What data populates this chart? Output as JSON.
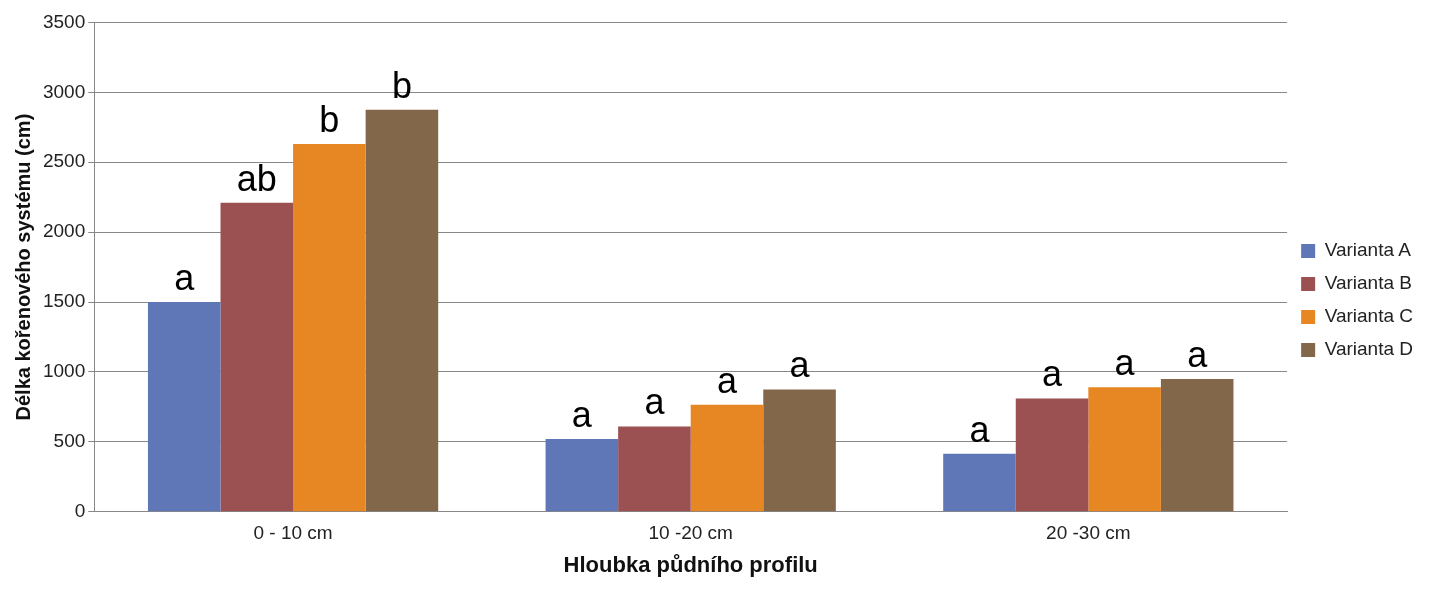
{
  "chart_data": {
    "type": "bar",
    "xlabel": "Hloubka půdního profilu",
    "ylabel": "Délka kořenového systému (cm)",
    "categories": [
      "0 - 10 cm",
      "10 -20 cm",
      "20 -30 cm"
    ],
    "series": [
      {
        "name": "Varianta A",
        "color": "#5f77b6",
        "values": [
          1500,
          520,
          415
        ]
      },
      {
        "name": "Varianta B",
        "color": "#9b5152",
        "values": [
          2210,
          610,
          810
        ]
      },
      {
        "name": "Varianta C",
        "color": "#e68724",
        "values": [
          2630,
          765,
          890
        ]
      },
      {
        "name": "Varianta D",
        "color": "#82674a",
        "values": [
          2875,
          875,
          950
        ]
      }
    ],
    "ylim": [
      0,
      3500
    ],
    "yticks": [
      0,
      500,
      1000,
      1500,
      2000,
      2500,
      3000,
      3500
    ],
    "grid": "y",
    "legend": "right",
    "annotations": [
      "a",
      "ab",
      "b",
      "b",
      "a",
      "a",
      "a",
      "a",
      "a",
      "a",
      "a",
      "a"
    ]
  }
}
